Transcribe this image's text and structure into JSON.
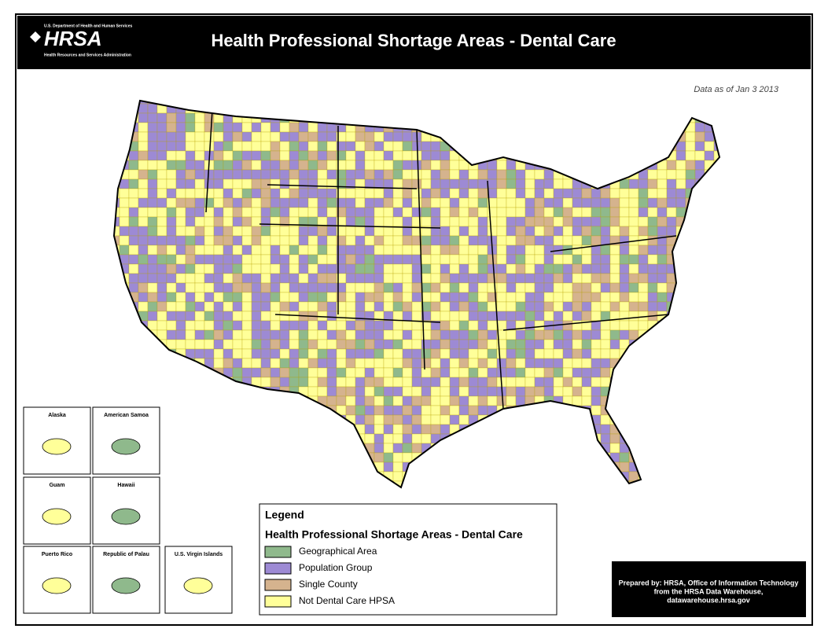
{
  "header": {
    "agency_line1": "U.S. Department of Health and Human Services",
    "logo": "HRSA",
    "agency_line2": "Health Resources and Services Administration",
    "title": "Health Professional Shortage Areas - Dental Care"
  },
  "data_date": "Data as of Jan  3 2013",
  "insets": [
    "Alaska",
    "American Samoa",
    "Guam",
    "Hawaii",
    "Puerto Rico",
    "Republic of Palau",
    "U.S. Virgin Islands"
  ],
  "legend": {
    "title": "Legend",
    "subtitle": "Health Professional Shortage Areas - Dental Care",
    "items": [
      {
        "label": "Geographical Area",
        "color": "#8fb98c"
      },
      {
        "label": "Population Group",
        "color": "#9d8ad4"
      },
      {
        "label": "Single County",
        "color": "#d5b38e"
      },
      {
        "label": "Not Dental Care HPSA",
        "color": "#ffff99"
      }
    ]
  },
  "credit": [
    "Prepared by:  HRSA, Office of Information Technology",
    "from the HRSA Data Warehouse,",
    "datawarehouse.hrsa.gov"
  ]
}
